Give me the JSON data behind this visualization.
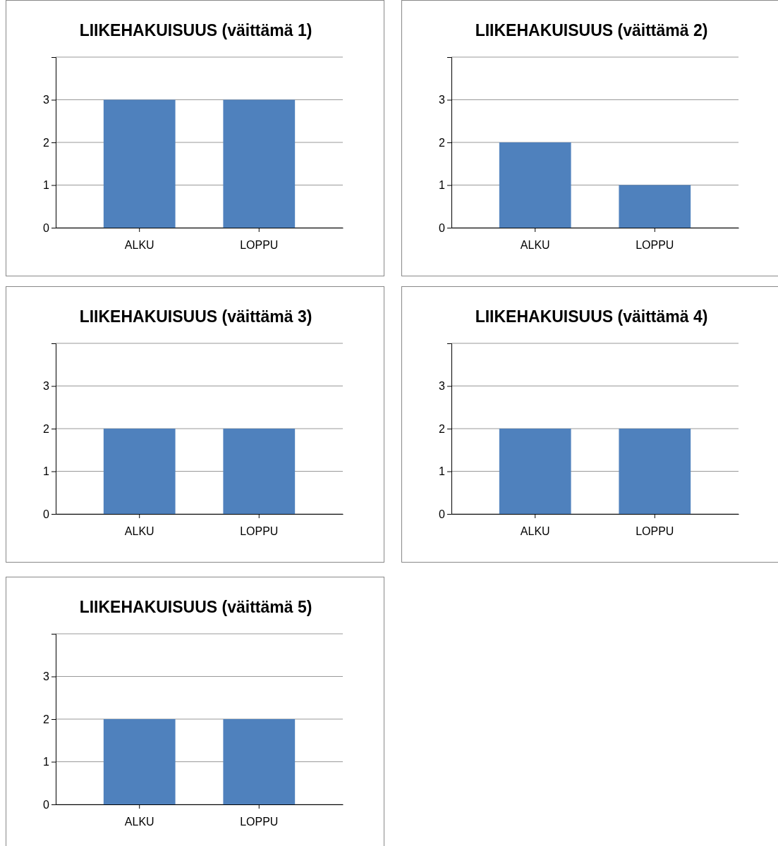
{
  "chart_data": [
    {
      "type": "bar",
      "title": "LIIKEHAKUISUUS (väittämä 1)",
      "categories": [
        "ALKU",
        "LOPPU"
      ],
      "values": [
        3,
        3
      ],
      "color": "#4f81bd",
      "ylim": [
        0,
        4
      ],
      "yticks": [
        0,
        1,
        2,
        3
      ],
      "grid": "y"
    },
    {
      "type": "bar",
      "title": "LIIKEHAKUISUUS (väittämä 2)",
      "categories": [
        "ALKU",
        "LOPPU"
      ],
      "values": [
        2,
        1
      ],
      "color": "#4f81bd",
      "ylim": [
        0,
        4
      ],
      "yticks": [
        0,
        1,
        2,
        3
      ],
      "grid": "y"
    },
    {
      "type": "bar",
      "title": "LIIKEHAKUISUUS (väittämä 3)",
      "categories": [
        "ALKU",
        "LOPPU"
      ],
      "values": [
        2,
        2
      ],
      "color": "#4f81bd",
      "ylim": [
        0,
        4
      ],
      "yticks": [
        0,
        1,
        2,
        3
      ],
      "grid": "y"
    },
    {
      "type": "bar",
      "title": "LIIKEHAKUISUUS (väittämä 4)",
      "categories": [
        "ALKU",
        "LOPPU"
      ],
      "values": [
        2,
        2
      ],
      "color": "#4f81bd",
      "ylim": [
        0,
        4
      ],
      "yticks": [
        0,
        1,
        2,
        3
      ],
      "grid": "y"
    },
    {
      "type": "bar",
      "title": "LIIKEHAKUISUUS (väittämä 5)",
      "categories": [
        "ALKU",
        "LOPPU"
      ],
      "values": [
        2,
        2
      ],
      "color": "#4f81bd",
      "ylim": [
        0,
        4
      ],
      "yticks": [
        0,
        1,
        2,
        3
      ],
      "grid": "y"
    }
  ]
}
